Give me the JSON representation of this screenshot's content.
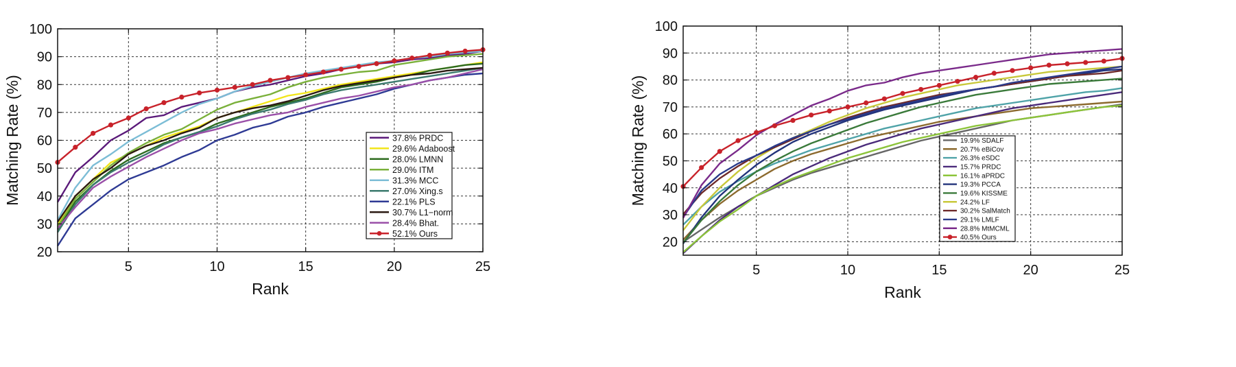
{
  "chart_data": [
    {
      "type": "line",
      "title": "",
      "xlabel": "Rank",
      "ylabel": "Matching Rate (%)",
      "xlim": [
        1,
        25
      ],
      "ylim": [
        20,
        100
      ],
      "xticks": [
        5,
        10,
        15,
        20,
        25
      ],
      "yticks": [
        20,
        30,
        40,
        50,
        60,
        70,
        80,
        90,
        100
      ],
      "grid": true,
      "legend_position": "bottom-right",
      "x": [
        1,
        2,
        3,
        4,
        5,
        6,
        7,
        8,
        9,
        10,
        11,
        12,
        13,
        14,
        15,
        16,
        17,
        18,
        19,
        20,
        21,
        22,
        23,
        24,
        25
      ],
      "series": [
        {
          "name": "37.8% PRDC",
          "color": "#5b1a7a",
          "values": [
            37.8,
            48.5,
            54,
            60,
            63.5,
            68,
            69,
            72,
            73.5,
            75,
            77.5,
            79,
            80,
            81.5,
            83,
            84,
            85.5,
            86.5,
            87.5,
            88,
            89,
            89.5,
            90.5,
            91,
            92
          ]
        },
        {
          "name": "29.6% Adaboost",
          "color": "#f2e51a",
          "values": [
            29.6,
            40,
            46,
            52,
            55,
            58,
            61,
            63,
            65,
            68,
            70,
            72,
            74,
            76,
            77,
            78.5,
            80,
            81,
            82,
            83,
            84,
            85,
            86,
            87,
            88
          ]
        },
        {
          "name": "28.0% LMNN",
          "color": "#2d6b1f",
          "values": [
            28,
            38,
            44,
            49,
            53,
            56,
            59,
            61,
            63,
            66,
            68,
            70,
            72,
            73.5,
            75,
            77,
            79,
            80,
            81,
            82.5,
            83.5,
            85,
            86,
            87,
            87.5
          ]
        },
        {
          "name": "29.0% ITM",
          "color": "#7ab03a",
          "values": [
            29,
            39,
            45,
            51,
            55.5,
            59,
            62,
            64,
            67.5,
            71,
            73.5,
            75,
            76.5,
            79,
            81,
            82.5,
            83.5,
            84.5,
            85,
            87,
            88,
            89,
            90,
            90.5,
            91
          ]
        },
        {
          "name": "31.3% MCC",
          "color": "#7cbdd6",
          "values": [
            31.3,
            43,
            51,
            55,
            59.5,
            63,
            66.5,
            70,
            73,
            75,
            77.5,
            79.5,
            81,
            82.5,
            84,
            85,
            86,
            87,
            88,
            88.5,
            89.5,
            90,
            91,
            91.5,
            92
          ]
        },
        {
          "name": "27.0% Xing.s",
          "color": "#3b7a6e",
          "values": [
            27,
            37,
            44,
            48.5,
            52,
            55,
            58.5,
            61,
            63,
            65,
            67.5,
            69.5,
            71,
            73,
            74.5,
            76.5,
            78,
            79,
            80,
            81,
            82,
            83,
            84,
            85,
            86
          ]
        },
        {
          "name": "22.1% PLS",
          "color": "#2e3a94",
          "values": [
            22.1,
            32,
            37,
            42,
            46,
            48.5,
            51,
            54,
            56.5,
            60,
            62,
            64.5,
            66,
            68.5,
            70,
            72,
            73.5,
            75,
            76.5,
            78.5,
            80,
            81.5,
            82.5,
            83.5,
            84
          ]
        },
        {
          "name": "30.7% L1−norm",
          "color": "#2b1a12",
          "values": [
            30.7,
            40,
            46,
            50,
            55,
            58,
            60,
            62.5,
            64.5,
            68,
            70,
            71.5,
            72.5,
            74,
            76,
            78,
            79.5,
            80.5,
            81.5,
            82.5,
            83.5,
            84,
            85,
            85.5,
            86
          ]
        },
        {
          "name": "28.4% Bhat.",
          "color": "#9a4fa8",
          "values": [
            28.4,
            36,
            43,
            47,
            50.5,
            54,
            57,
            60,
            62.5,
            64,
            66,
            67.5,
            69,
            70,
            72,
            73.5,
            75,
            76,
            77.5,
            79,
            80,
            81.5,
            82.5,
            84,
            85.5
          ]
        },
        {
          "name": "52.1% Ours",
          "color": "#c8222a",
          "marker": "circle",
          "values": [
            52.1,
            57.5,
            62.5,
            65.5,
            68,
            71.3,
            73.5,
            75.5,
            77,
            78,
            79,
            80,
            81.5,
            82.5,
            83.5,
            84.5,
            85.5,
            86.5,
            87.5,
            88.5,
            89.5,
            90.5,
            91.3,
            92,
            92.5
          ]
        }
      ]
    },
    {
      "type": "line",
      "title": "",
      "xlabel": "Rank",
      "ylabel": "Matching Rate (%)",
      "xlim": [
        1,
        25
      ],
      "ylim": [
        15,
        100
      ],
      "xticks": [
        5,
        10,
        15,
        20,
        25
      ],
      "yticks": [
        20,
        30,
        40,
        50,
        60,
        70,
        80,
        90,
        100
      ],
      "grid": true,
      "legend_position": "bottom-right",
      "x": [
        1,
        2,
        3,
        4,
        5,
        6,
        7,
        8,
        9,
        10,
        11,
        12,
        13,
        14,
        15,
        16,
        17,
        18,
        19,
        20,
        21,
        22,
        23,
        24,
        25
      ],
      "series": [
        {
          "name": "19.9% SDALF",
          "color": "#666666",
          "values": [
            19.9,
            24.5,
            29,
            33,
            37,
            40,
            43,
            45.5,
            47.5,
            49.5,
            51.5,
            53.5,
            55.5,
            57.5,
            59,
            60.5,
            62,
            63.5,
            65,
            66,
            67,
            68,
            69,
            70,
            71
          ]
        },
        {
          "name": "20.7% eBiCov",
          "color": "#8c6a2e",
          "values": [
            20.7,
            28,
            34,
            39,
            43,
            47,
            50,
            52.5,
            54.5,
            56.5,
            58.5,
            60,
            61.5,
            63,
            64.5,
            65.5,
            66.5,
            67.5,
            68.5,
            69.5,
            70,
            70.5,
            71,
            71.5,
            72
          ]
        },
        {
          "name": "26.3% eSDC",
          "color": "#4fa3a8",
          "values": [
            26.3,
            33,
            38.5,
            42.5,
            46,
            49,
            51.5,
            54,
            56,
            58,
            60,
            62,
            63.5,
            65,
            66.5,
            68,
            69.5,
            70.5,
            71.5,
            72.5,
            73.5,
            74.5,
            75.5,
            76,
            77
          ]
        },
        {
          "name": "15.7% PRDC",
          "color": "#4a2a7a",
          "values": [
            15.7,
            22,
            28,
            33,
            37,
            41,
            45,
            48,
            51,
            53.5,
            56,
            58,
            60,
            62,
            63.5,
            65,
            66.5,
            68,
            69.5,
            70.5,
            71.5,
            72.5,
            73.5,
            74.5,
            75.5
          ]
        },
        {
          "name": "16.1% aPRDC",
          "color": "#8cc43a",
          "values": [
            16.1,
            22,
            27.5,
            32,
            37,
            40.5,
            43.5,
            46,
            48.5,
            51,
            53,
            55,
            57,
            58.5,
            60,
            61.5,
            63,
            64,
            65,
            66,
            67,
            68,
            69,
            70,
            70.5
          ]
        },
        {
          "name": "19.3% PCCA",
          "color": "#22337a",
          "values": [
            19.3,
            29,
            37,
            43,
            48.5,
            53,
            57,
            60,
            62.5,
            65,
            67,
            69,
            70.5,
            72,
            73.5,
            75,
            76.5,
            77.5,
            78.5,
            79.5,
            80.5,
            81.5,
            82.5,
            83.5,
            84
          ]
        },
        {
          "name": "19.6% KISSME",
          "color": "#3a7a3a",
          "values": [
            19.6,
            28,
            35,
            41,
            46,
            50,
            53.5,
            56.5,
            59,
            61.5,
            64,
            66,
            68,
            70,
            71.5,
            73,
            74.5,
            75.5,
            76.5,
            77.5,
            78.5,
            79,
            79.5,
            80,
            80.5
          ]
        },
        {
          "name": "24.2% LF",
          "color": "#c8c83a",
          "values": [
            24.2,
            33,
            40,
            46,
            51,
            55,
            58.5,
            61.5,
            64.5,
            67,
            69.5,
            71.5,
            73.5,
            75,
            76.5,
            78,
            79,
            80,
            81,
            82,
            83,
            83.5,
            84,
            84.5,
            85
          ]
        },
        {
          "name": "30.2% SalMatch",
          "color": "#6e2a2a",
          "values": [
            30.2,
            38,
            43.5,
            48,
            52,
            55,
            58,
            61,
            63.5,
            66,
            68,
            70,
            71.5,
            73,
            74.5,
            75.5,
            76.5,
            77.5,
            78.5,
            79.5,
            80.5,
            81.5,
            82,
            82.5,
            83.5
          ]
        },
        {
          "name": "29.1% LMLF",
          "color": "#2a3a8a",
          "values": [
            29.1,
            39,
            45,
            49,
            52,
            55.5,
            58.5,
            61,
            63.5,
            65.5,
            67.5,
            69.5,
            71,
            72.5,
            74,
            75.5,
            76.5,
            77.5,
            79,
            80,
            81,
            82,
            83,
            84,
            85
          ]
        },
        {
          "name": "28.8% MtMCML",
          "color": "#7a2a8a",
          "values": [
            28.8,
            41,
            49,
            54,
            59.5,
            63.5,
            67,
            70.5,
            73,
            76,
            78,
            79,
            81,
            82.5,
            83.5,
            84.5,
            85.5,
            86.5,
            87.5,
            88.5,
            89.5,
            90,
            90.5,
            91,
            91.5
          ]
        },
        {
          "name": "40.5% Ours",
          "color": "#c8222a",
          "marker": "circle",
          "values": [
            40.5,
            47.5,
            53.5,
            57.5,
            60.5,
            63,
            65,
            67,
            68.5,
            70,
            71.5,
            73,
            75,
            76.5,
            78,
            79.5,
            81,
            82.5,
            83.5,
            84.5,
            85.5,
            86,
            86.5,
            87,
            88
          ]
        }
      ]
    }
  ]
}
